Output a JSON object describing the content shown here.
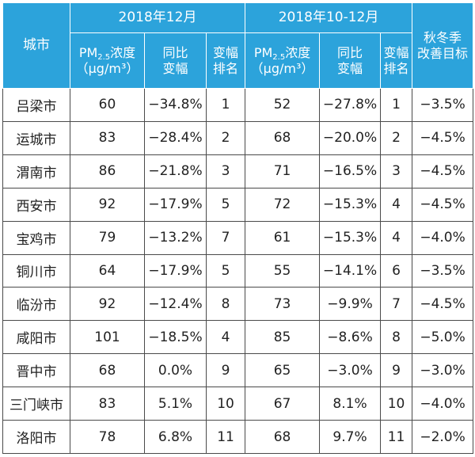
{
  "chart_data": {
    "type": "table",
    "header": {
      "city": "城市",
      "group1": "2018年12月",
      "group2": "2018年10-12月",
      "target_line1": "秋冬季",
      "target_line2": "改善目标",
      "pm_prefix": "PM",
      "pm_sub": "2.5",
      "pm_suffix": "浓度",
      "pm_unit": "（μg/m³）",
      "yoy_line1": "同比",
      "yoy_line2": "变幅",
      "rank_line1": "变幅",
      "rank_line2": "排名"
    },
    "rows": [
      {
        "city": "吕梁市",
        "pm_dec": "60",
        "yoy_dec": "−34.8%",
        "rank_dec": "1",
        "pm_q4": "52",
        "yoy_q4": "−27.8%",
        "rank_q4": "1",
        "target": "−3.5%"
      },
      {
        "city": "运城市",
        "pm_dec": "83",
        "yoy_dec": "−28.4%",
        "rank_dec": "2",
        "pm_q4": "68",
        "yoy_q4": "−20.0%",
        "rank_q4": "2",
        "target": "−4.5%"
      },
      {
        "city": "渭南市",
        "pm_dec": "86",
        "yoy_dec": "−21.8%",
        "rank_dec": "3",
        "pm_q4": "71",
        "yoy_q4": "−16.5%",
        "rank_q4": "3",
        "target": "−4.5%"
      },
      {
        "city": "西安市",
        "pm_dec": "92",
        "yoy_dec": "−17.9%",
        "rank_dec": "5",
        "pm_q4": "72",
        "yoy_q4": "−15.3%",
        "rank_q4": "4",
        "target": "−4.5%"
      },
      {
        "city": "宝鸡市",
        "pm_dec": "79",
        "yoy_dec": "−13.2%",
        "rank_dec": "7",
        "pm_q4": "61",
        "yoy_q4": "−15.3%",
        "rank_q4": "4",
        "target": "−4.0%"
      },
      {
        "city": "铜川市",
        "pm_dec": "64",
        "yoy_dec": "−17.9%",
        "rank_dec": "5",
        "pm_q4": "55",
        "yoy_q4": "−14.1%",
        "rank_q4": "6",
        "target": "−3.5%"
      },
      {
        "city": "临汾市",
        "pm_dec": "92",
        "yoy_dec": "−12.4%",
        "rank_dec": "8",
        "pm_q4": "73",
        "yoy_q4": "−9.9%",
        "rank_q4": "7",
        "target": "−4.5%"
      },
      {
        "city": "咸阳市",
        "pm_dec": "101",
        "yoy_dec": "−18.5%",
        "rank_dec": "4",
        "pm_q4": "85",
        "yoy_q4": "−8.6%",
        "rank_q4": "8",
        "target": "−5.0%"
      },
      {
        "city": "晋中市",
        "pm_dec": "68",
        "yoy_dec": "0.0%",
        "rank_dec": "9",
        "pm_q4": "65",
        "yoy_q4": "−3.0%",
        "rank_q4": "9",
        "target": "−3.0%"
      },
      {
        "city": "三门峡市",
        "pm_dec": "83",
        "yoy_dec": "5.1%",
        "rank_dec": "10",
        "pm_q4": "67",
        "yoy_q4": "8.1%",
        "rank_q4": "10",
        "target": "−4.0%"
      },
      {
        "city": "洛阳市",
        "pm_dec": "78",
        "yoy_dec": "6.8%",
        "rank_dec": "11",
        "pm_q4": "68",
        "yoy_q4": "9.7%",
        "rank_q4": "11",
        "target": "−2.0%"
      }
    ]
  }
}
